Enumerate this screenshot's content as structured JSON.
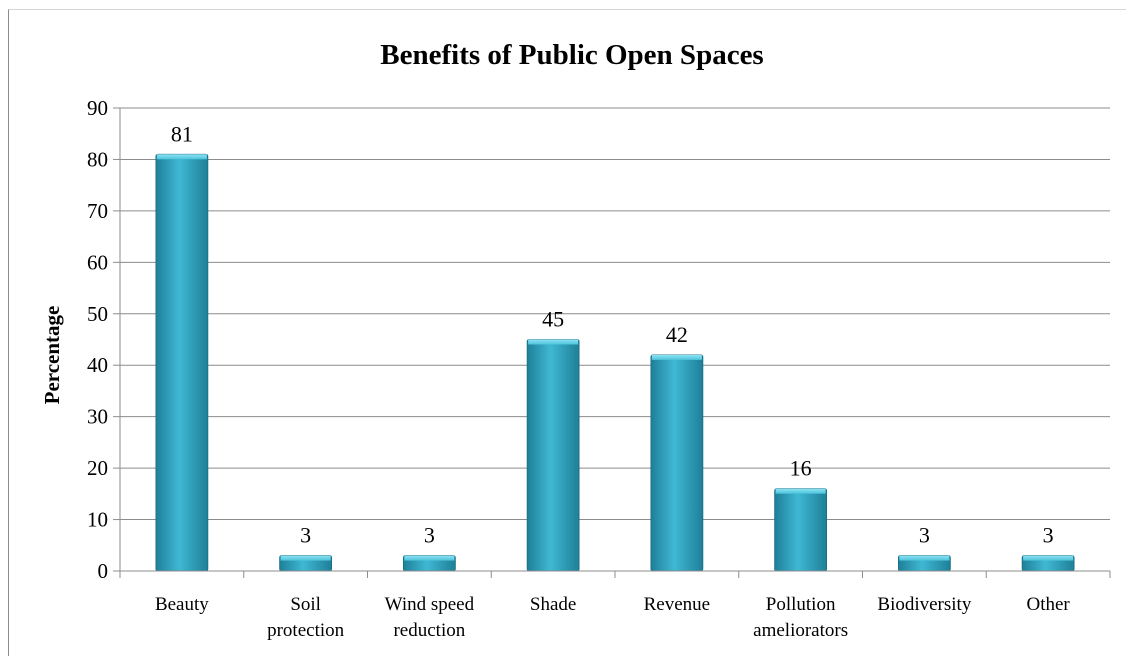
{
  "chart_data": {
    "type": "bar",
    "title": "Benefits of Public Open Spaces",
    "xlabel": "",
    "ylabel": "Percentage",
    "ylim": [
      0,
      90
    ],
    "yticks": [
      0,
      10,
      20,
      30,
      40,
      50,
      60,
      70,
      80,
      90
    ],
    "grid": true,
    "legend": "none",
    "bar_color": "#3fb8d4",
    "bar_dark": "#1f7f98",
    "categories": [
      [
        "Beauty"
      ],
      [
        "Soil",
        "protection"
      ],
      [
        "Wind speed",
        "reduction"
      ],
      [
        "Shade"
      ],
      [
        "Revenue"
      ],
      [
        "Pollution",
        "ameliorators"
      ],
      [
        "Biodiversity"
      ],
      [
        "Other"
      ]
    ],
    "values": [
      81,
      3,
      3,
      45,
      42,
      16,
      3,
      3
    ],
    "data_labels": [
      "81",
      "3",
      "3",
      "45",
      "42",
      "16",
      "3",
      "3"
    ]
  }
}
